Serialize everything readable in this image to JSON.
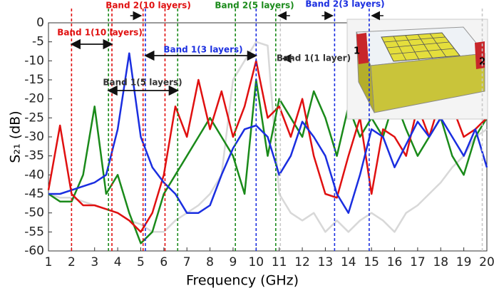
{
  "chart_data": {
    "type": "line",
    "x_label": "Frequency (GHz)",
    "y_label": "S₂₁ (dB)",
    "x": [
      1,
      1.5,
      2,
      2.5,
      3,
      3.5,
      4,
      4.5,
      5,
      5.5,
      6,
      6.5,
      7,
      7.5,
      8,
      8.5,
      9,
      9.5,
      10,
      10.5,
      11,
      11.5,
      12,
      12.5,
      13,
      13.5,
      14,
      14.5,
      15,
      15.5,
      16,
      16.5,
      17,
      17.5,
      18,
      18.5,
      19,
      19.5,
      20
    ],
    "series": [
      {
        "color": "#d8d8d8",
        "values": [
          -45,
          -46,
          -46,
          -47,
          -48,
          -49,
          -50,
          -52,
          -53,
          -55,
          -55,
          -52,
          -50,
          -48,
          -45,
          -40,
          -15,
          -10,
          -5,
          -6,
          -45,
          -50,
          -52,
          -50,
          -55,
          -52,
          -55,
          -52,
          -50,
          -52,
          -55,
          -50,
          -48,
          -45,
          -42,
          -38,
          -35,
          -30,
          -28
        ]
      },
      {
        "color": "#1a8a1a",
        "values": [
          -45,
          -47,
          -47,
          -40,
          -22,
          -45,
          -40,
          -50,
          -58,
          -55,
          -45,
          -40,
          -35,
          -30,
          -25,
          -30,
          -35,
          -45,
          -15,
          -35,
          -20,
          -25,
          -30,
          -18,
          -25,
          -35,
          -22,
          -30,
          -25,
          -30,
          -20,
          -28,
          -35,
          -30,
          -25,
          -35,
          -40,
          -30,
          -25
        ]
      },
      {
        "color": "#e01010",
        "values": [
          -44,
          -27,
          -45,
          -48,
          -48,
          -49,
          -50,
          -52,
          -55,
          -50,
          -40,
          -22,
          -30,
          -15,
          -28,
          -18,
          -30,
          -22,
          -10,
          -25,
          -22,
          -30,
          -20,
          -35,
          -45,
          -46,
          -35,
          -25,
          -45,
          -28,
          -30,
          -35,
          -22,
          -30,
          -20,
          -22,
          -30,
          -28,
          -25
        ]
      },
      {
        "color": "#1a2ee0",
        "values": [
          -45,
          -45,
          -44,
          -43,
          -42,
          -40,
          -28,
          -8,
          -30,
          -38,
          -42,
          -45,
          -50,
          -50,
          -48,
          -40,
          -33,
          -28,
          -27,
          -30,
          -40,
          -35,
          -26,
          -30,
          -35,
          -45,
          -50,
          -40,
          -28,
          -30,
          -38,
          -32,
          -26,
          -30,
          -25,
          -30,
          -35,
          -28,
          -38
        ]
      }
    ],
    "xlim": [
      1,
      20
    ],
    "xticks": [
      1,
      2,
      3,
      4,
      5,
      6,
      7,
      8,
      9,
      10,
      11,
      12,
      13,
      14,
      15,
      16,
      17,
      18,
      19,
      20
    ],
    "ylim": [
      -60,
      0
    ],
    "yticks": [
      0,
      -5,
      -10,
      -15,
      -20,
      -25,
      -30,
      -35,
      -40,
      -45,
      -50,
      -55,
      -60
    ],
    "vlines": [
      {
        "x": 2.0,
        "color": "#e01010"
      },
      {
        "x": 3.75,
        "color": "#e01010"
      },
      {
        "x": 3.6,
        "color": "#1a8a1a"
      },
      {
        "x": 5.1,
        "color": "#e01010"
      },
      {
        "x": 6.05,
        "color": "#e01010"
      },
      {
        "x": 5.2,
        "color": "#1a2ee0"
      },
      {
        "x": 6.6,
        "color": "#1a8a1a"
      },
      {
        "x": 9.1,
        "color": "#1a8a1a"
      },
      {
        "x": 10.0,
        "color": "#1a2ee0"
      },
      {
        "x": 10.85,
        "color": "#1a8a1a"
      },
      {
        "x": 11.05,
        "color": "#c8c8c8"
      },
      {
        "x": 13.4,
        "color": "#1a2ee0"
      },
      {
        "x": 14.9,
        "color": "#1a2ee0"
      },
      {
        "x": 19.8,
        "color": "#c8c8c8"
      }
    ],
    "annotations": [
      {
        "text": "Band 2(10 layers)",
        "color": "#e01010"
      },
      {
        "text": "Band 2(5 layers)",
        "color": "#1a8a1a"
      },
      {
        "text": "Band 2(3 layers)",
        "color": "#1a2ee0"
      },
      {
        "text": "Band 1(10 layers)",
        "color": "#e01010"
      },
      {
        "text": "Band 1(3 layers)",
        "color": "#1a2ee0"
      },
      {
        "text": "Band 1(1 layer)",
        "color": "#333333"
      },
      {
        "text": "Band 1(5 layers)",
        "color": "#333333"
      }
    ],
    "inset": {
      "port_labels": [
        "1",
        "2"
      ]
    }
  }
}
